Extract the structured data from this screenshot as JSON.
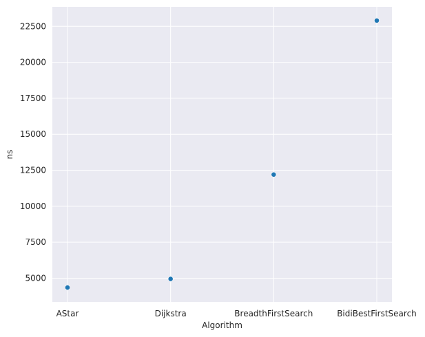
{
  "chart_data": {
    "type": "scatter",
    "categories": [
      "AStar",
      "Dijkstra",
      "BreadthFirstSearch",
      "BidiBestFirstSearch"
    ],
    "values": [
      4350,
      4950,
      12200,
      22900
    ],
    "xlabel": "Algorithm",
    "ylabel": "ns",
    "ylim": [
      3350,
      23850
    ],
    "yticks": [
      5000,
      7500,
      10000,
      12500,
      15000,
      17500,
      20000,
      22500
    ],
    "ytick_labels": [
      "5000",
      "7500",
      "10000",
      "12500",
      "15000",
      "17500",
      "20000",
      "22500"
    ],
    "grid": true,
    "background_color": "#eaeaf2",
    "grid_color": "#ffffff",
    "point_color": "#1f77b4"
  }
}
